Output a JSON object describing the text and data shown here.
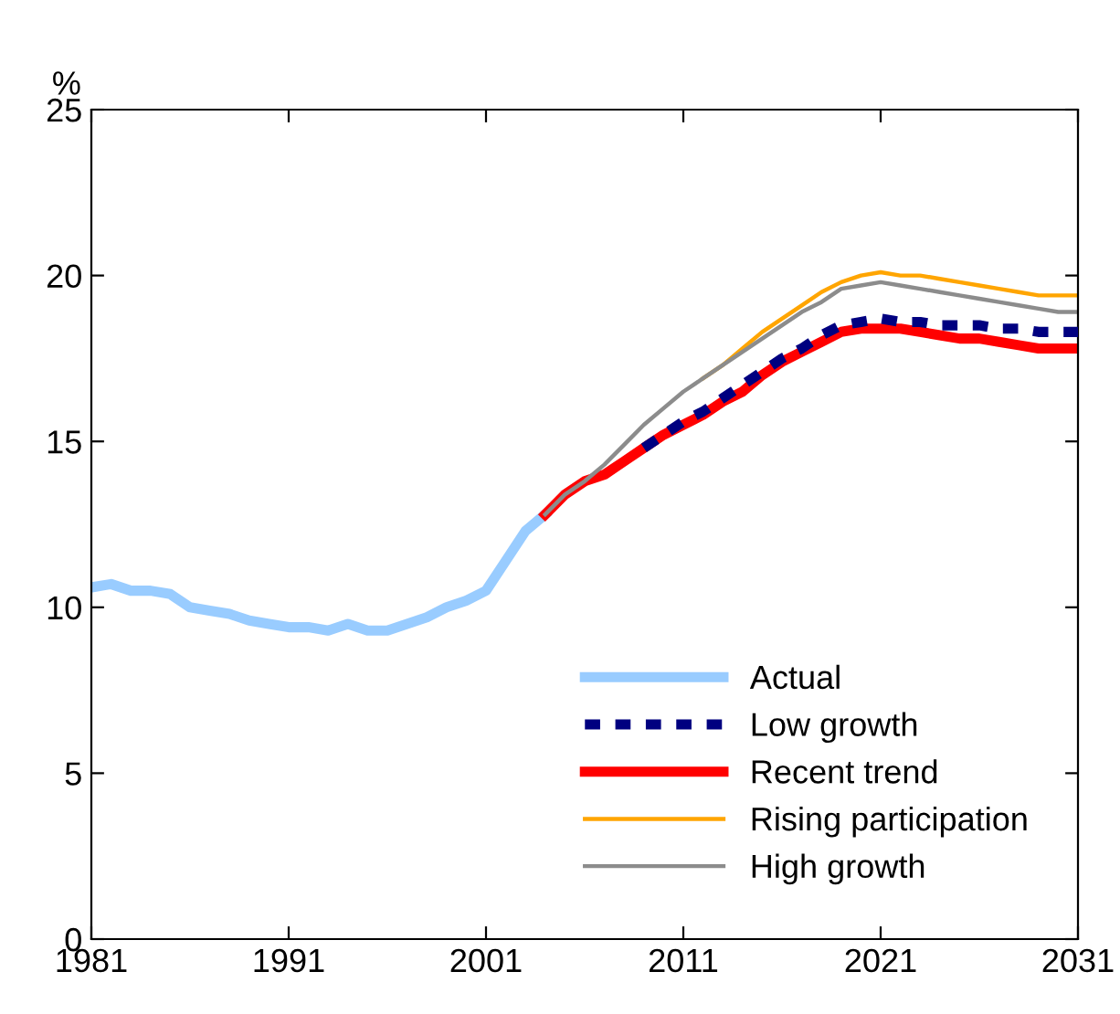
{
  "chart_data": {
    "type": "line",
    "ylabel": "%",
    "xlim": [
      1981,
      2031
    ],
    "xticks": [
      1981,
      1991,
      2001,
      2011,
      2021,
      2031
    ],
    "ylim": [
      0,
      25
    ],
    "yticks": [
      0,
      5,
      10,
      15,
      20,
      25
    ],
    "grid": false,
    "legend": "bottom right",
    "marker": "none",
    "series": [
      {
        "name": "Actual",
        "color": "#99ccff",
        "x": [
          1981,
          1982,
          1983,
          1984,
          1985,
          1986,
          1987,
          1988,
          1989,
          1990,
          1991,
          1992,
          1993,
          1994,
          1995,
          1996,
          1997,
          1998,
          1999,
          2000,
          2001,
          2002,
          2003,
          2004
        ],
        "values": [
          10.6,
          10.7,
          10.5,
          10.5,
          10.4,
          10.0,
          9.9,
          9.8,
          9.6,
          9.5,
          9.4,
          9.4,
          9.3,
          9.5,
          9.3,
          9.3,
          9.5,
          9.7,
          10.0,
          10.2,
          10.5,
          11.4,
          12.3,
          12.8
        ]
      },
      {
        "name": "Low growth",
        "color": "#000080",
        "line_style": "dashed",
        "x": [
          2009,
          2010,
          2011,
          2012,
          2013,
          2014,
          2015,
          2016,
          2017,
          2018,
          2019,
          2020,
          2021,
          2022,
          2023,
          2024,
          2025,
          2026,
          2027,
          2028,
          2029,
          2030,
          2031
        ],
        "values": [
          14.8,
          15.2,
          15.6,
          15.9,
          16.3,
          16.7,
          17.1,
          17.5,
          17.8,
          18.2,
          18.5,
          18.6,
          18.7,
          18.6,
          18.6,
          18.5,
          18.5,
          18.5,
          18.4,
          18.4,
          18.3,
          18.3,
          18.3
        ]
      },
      {
        "name": "Recent trend",
        "color": "#ff0000",
        "x": [
          2004,
          2005,
          2006,
          2007,
          2008,
          2009,
          2010,
          2011,
          2012,
          2013,
          2014,
          2015,
          2016,
          2017,
          2018,
          2019,
          2020,
          2021,
          2022,
          2023,
          2024,
          2025,
          2026,
          2027,
          2028,
          2029,
          2030,
          2031
        ],
        "values": [
          12.8,
          13.4,
          13.8,
          14.0,
          14.4,
          14.8,
          15.2,
          15.5,
          15.8,
          16.2,
          16.5,
          17.0,
          17.4,
          17.7,
          18.0,
          18.3,
          18.4,
          18.4,
          18.4,
          18.3,
          18.2,
          18.1,
          18.1,
          18.0,
          17.9,
          17.8,
          17.8,
          17.8
        ]
      },
      {
        "name": "Rising participation",
        "color": "#ffa500",
        "x": [
          2012,
          2013,
          2014,
          2015,
          2016,
          2017,
          2018,
          2019,
          2020,
          2021,
          2022,
          2023,
          2024,
          2025,
          2026,
          2027,
          2028,
          2029,
          2030,
          2031
        ],
        "values": [
          16.9,
          17.3,
          17.8,
          18.3,
          18.7,
          19.1,
          19.5,
          19.8,
          20.0,
          20.1,
          20.0,
          20.0,
          19.9,
          19.8,
          19.7,
          19.6,
          19.5,
          19.4,
          19.4,
          19.4
        ]
      },
      {
        "name": "High growth",
        "color": "#8c8c8c",
        "x": [
          2004,
          2005,
          2006,
          2007,
          2008,
          2009,
          2010,
          2011,
          2012,
          2013,
          2014,
          2015,
          2016,
          2017,
          2018,
          2019,
          2020,
          2021,
          2022,
          2023,
          2024,
          2025,
          2026,
          2027,
          2028,
          2029,
          2030,
          2031
        ],
        "values": [
          12.8,
          13.4,
          13.8,
          14.3,
          14.9,
          15.5,
          16.0,
          16.5,
          16.9,
          17.3,
          17.7,
          18.1,
          18.5,
          18.9,
          19.2,
          19.6,
          19.7,
          19.8,
          19.7,
          19.6,
          19.5,
          19.4,
          19.3,
          19.2,
          19.1,
          19.0,
          18.9,
          18.9
        ]
      }
    ]
  }
}
